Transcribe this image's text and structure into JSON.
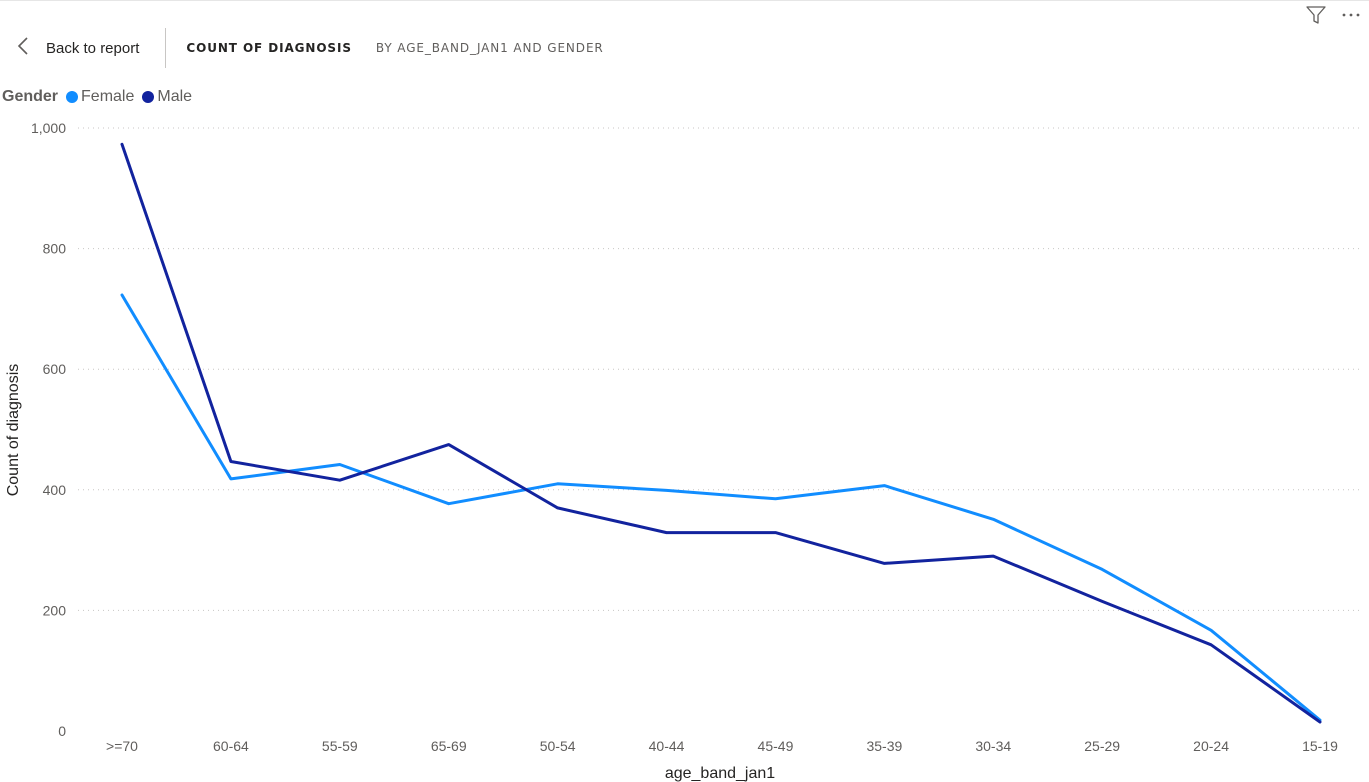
{
  "header": {
    "back_label": "Back to report",
    "title_main": "COUNT OF DIAGNOSIS",
    "title_sub": "BY AGE_BAND_JAN1 AND GENDER"
  },
  "icons": {
    "filter": "filter-icon",
    "more": "more-options-icon",
    "back": "chevron-left-icon"
  },
  "legend": {
    "title": "Gender",
    "items": [
      {
        "label": "Female",
        "color": "#118DFF"
      },
      {
        "label": "Male",
        "color": "#12239E"
      }
    ]
  },
  "chart_data": {
    "type": "line",
    "categories": [
      ">=70",
      "60-64",
      "55-59",
      "65-69",
      "50-54",
      "40-44",
      "45-49",
      "35-39",
      "30-34",
      "25-29",
      "20-24",
      "15-19"
    ],
    "series": [
      {
        "name": "Female",
        "color": "#118DFF",
        "values": [
          723,
          418,
          442,
          377,
          410,
          399,
          385,
          407,
          351,
          268,
          167,
          18
        ]
      },
      {
        "name": "Male",
        "color": "#12239E",
        "values": [
          973,
          447,
          416,
          475,
          370,
          329,
          329,
          278,
          290,
          215,
          143,
          15
        ]
      }
    ],
    "xlabel": "age_band_jan1",
    "ylabel": "Count of diagnosis",
    "ylim": [
      0,
      1000
    ],
    "yticks": [
      0,
      200,
      400,
      600,
      800,
      1000
    ],
    "ytick_labels": [
      "0",
      "200",
      "400",
      "600",
      "800",
      "1,000"
    ],
    "grid": true,
    "legend_position": "top-left"
  }
}
